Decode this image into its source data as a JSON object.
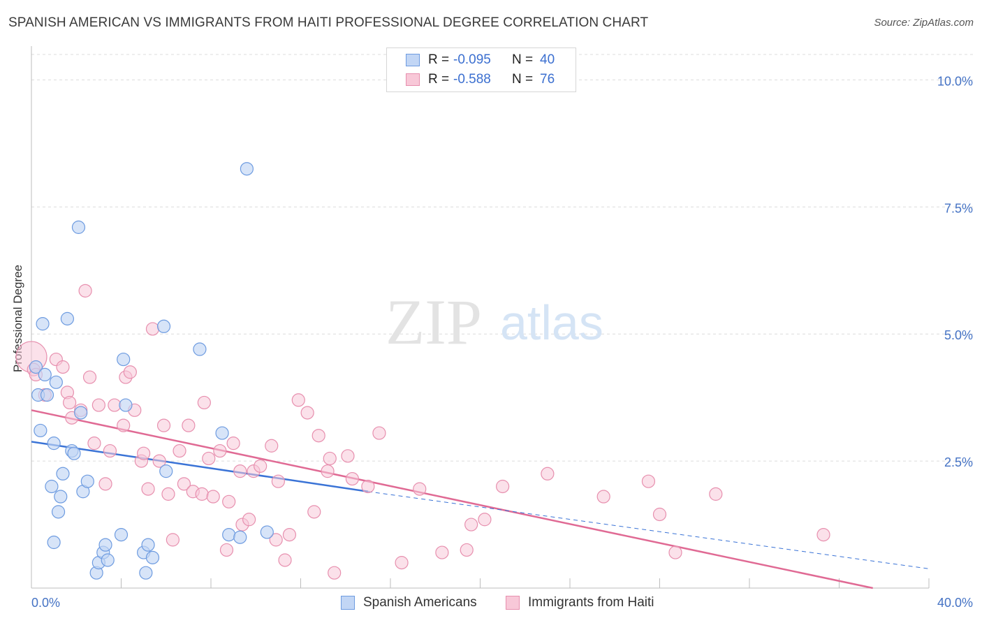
{
  "header": {
    "title": "SPANISH AMERICAN VS IMMIGRANTS FROM HAITI PROFESSIONAL DEGREE CORRELATION CHART",
    "source": "Source: ZipAtlas.com"
  },
  "watermark": {
    "zip": "ZIP",
    "atlas": "atlas"
  },
  "legend": {
    "rows": [
      {
        "r_label": "R =",
        "r_value": "-0.095",
        "n_label": "N =",
        "n_value": "40",
        "fill": "#c2d6f5",
        "stroke": "#6d9be0"
      },
      {
        "r_label": "R =",
        "r_value": "-0.588",
        "n_label": "N =",
        "n_value": "76",
        "fill": "#f8c8d8",
        "stroke": "#e78fae"
      }
    ]
  },
  "bottom_legend": {
    "items": [
      {
        "label": "Spanish Americans",
        "fill": "#c2d6f5",
        "stroke": "#6d9be0"
      },
      {
        "label": "Immigrants from Haiti",
        "fill": "#f8c8d8",
        "stroke": "#e78fae"
      }
    ]
  },
  "chart_data": {
    "type": "scatter",
    "title": "SPANISH AMERICAN VS IMMIGRANTS FROM HAITI PROFESSIONAL DEGREE CORRELATION CHART",
    "xlabel": "",
    "ylabel": "Professional Degree",
    "xlim": [
      0,
      40
    ],
    "ylim": [
      0,
      10.5
    ],
    "x_tick_labels": [
      "0.0%",
      "40.0%"
    ],
    "y_ticks": [
      2.5,
      5.0,
      7.5,
      10.0
    ],
    "y_tick_labels": [
      "2.5%",
      "5.0%",
      "7.5%",
      "10.0%"
    ],
    "grid": true,
    "series": [
      {
        "name": "Spanish Americans",
        "color": "#6d9be0",
        "fill": "#c2d6f5",
        "points": [
          [
            0.2,
            4.35
          ],
          [
            0.3,
            3.8
          ],
          [
            0.4,
            3.1
          ],
          [
            0.5,
            5.2
          ],
          [
            0.6,
            4.2
          ],
          [
            0.7,
            3.8
          ],
          [
            0.9,
            2.0
          ],
          [
            1.0,
            0.9
          ],
          [
            1.0,
            2.85
          ],
          [
            1.1,
            4.05
          ],
          [
            1.2,
            1.5
          ],
          [
            1.3,
            1.8
          ],
          [
            1.4,
            2.25
          ],
          [
            1.6,
            5.3
          ],
          [
            1.8,
            2.7
          ],
          [
            1.9,
            2.65
          ],
          [
            2.1,
            7.1
          ],
          [
            2.2,
            3.45
          ],
          [
            2.3,
            1.9
          ],
          [
            2.5,
            2.1
          ],
          [
            2.9,
            0.3
          ],
          [
            3.0,
            0.5
          ],
          [
            3.2,
            0.7
          ],
          [
            3.3,
            0.85
          ],
          [
            3.4,
            0.55
          ],
          [
            4.0,
            1.05
          ],
          [
            4.1,
            4.5
          ],
          [
            4.2,
            3.6
          ],
          [
            5.0,
            0.7
          ],
          [
            5.1,
            0.3
          ],
          [
            5.2,
            0.85
          ],
          [
            5.4,
            0.6
          ],
          [
            5.9,
            5.15
          ],
          [
            6.0,
            2.3
          ],
          [
            7.5,
            4.7
          ],
          [
            8.5,
            3.05
          ],
          [
            8.8,
            1.05
          ],
          [
            9.3,
            1.0
          ],
          [
            9.6,
            8.25
          ],
          [
            10.5,
            1.1
          ]
        ],
        "trend": {
          "x_solid": [
            0,
            15
          ],
          "y_solid": [
            2.88,
            1.9
          ],
          "x_dash": [
            15,
            40
          ],
          "y_dash": [
            1.9,
            0.38
          ]
        }
      },
      {
        "name": "Immigrants from Haiti",
        "color": "#e78fae",
        "fill": "#f8c8d8",
        "points": [
          [
            0.0,
            4.55
          ],
          [
            0.1,
            4.3
          ],
          [
            0.2,
            4.2
          ],
          [
            0.6,
            3.8
          ],
          [
            1.1,
            4.5
          ],
          [
            1.4,
            4.35
          ],
          [
            1.6,
            3.85
          ],
          [
            1.7,
            3.65
          ],
          [
            1.8,
            3.35
          ],
          [
            2.2,
            3.5
          ],
          [
            2.4,
            5.85
          ],
          [
            2.6,
            4.15
          ],
          [
            2.8,
            2.85
          ],
          [
            3.0,
            3.6
          ],
          [
            3.3,
            2.05
          ],
          [
            3.5,
            2.7
          ],
          [
            3.7,
            3.6
          ],
          [
            4.1,
            3.2
          ],
          [
            4.2,
            4.15
          ],
          [
            4.4,
            4.25
          ],
          [
            4.6,
            3.5
          ],
          [
            4.9,
            2.5
          ],
          [
            5.0,
            2.65
          ],
          [
            5.2,
            1.95
          ],
          [
            5.4,
            5.1
          ],
          [
            5.7,
            2.5
          ],
          [
            5.9,
            3.2
          ],
          [
            6.1,
            1.85
          ],
          [
            6.3,
            0.95
          ],
          [
            6.6,
            2.7
          ],
          [
            6.8,
            2.05
          ],
          [
            7.0,
            3.2
          ],
          [
            7.2,
            1.9
          ],
          [
            7.6,
            1.85
          ],
          [
            7.7,
            3.65
          ],
          [
            7.9,
            2.55
          ],
          [
            8.1,
            1.8
          ],
          [
            8.4,
            2.7
          ],
          [
            8.7,
            0.75
          ],
          [
            8.8,
            1.7
          ],
          [
            9.0,
            2.85
          ],
          [
            9.3,
            2.3
          ],
          [
            9.4,
            1.25
          ],
          [
            9.7,
            1.35
          ],
          [
            9.9,
            2.3
          ],
          [
            10.2,
            2.4
          ],
          [
            10.7,
            2.8
          ],
          [
            10.9,
            0.95
          ],
          [
            11.0,
            2.1
          ],
          [
            11.3,
            0.55
          ],
          [
            11.5,
            1.05
          ],
          [
            11.9,
            3.7
          ],
          [
            12.3,
            3.45
          ],
          [
            12.6,
            1.5
          ],
          [
            12.8,
            3.0
          ],
          [
            13.2,
            2.3
          ],
          [
            13.3,
            2.55
          ],
          [
            13.5,
            0.3
          ],
          [
            14.1,
            2.6
          ],
          [
            14.3,
            2.15
          ],
          [
            15.0,
            2.0
          ],
          [
            15.5,
            3.05
          ],
          [
            16.5,
            0.5
          ],
          [
            17.3,
            1.95
          ],
          [
            18.3,
            0.7
          ],
          [
            19.4,
            0.75
          ],
          [
            19.6,
            1.25
          ],
          [
            20.2,
            1.35
          ],
          [
            21.0,
            2.0
          ],
          [
            23.0,
            2.25
          ],
          [
            25.5,
            1.8
          ],
          [
            27.5,
            2.1
          ],
          [
            28.0,
            1.45
          ],
          [
            28.7,
            0.7
          ],
          [
            30.5,
            1.85
          ],
          [
            35.3,
            1.05
          ]
        ],
        "trend": {
          "x": [
            0,
            37.5
          ],
          "y": [
            3.5,
            0.0
          ]
        }
      }
    ]
  }
}
